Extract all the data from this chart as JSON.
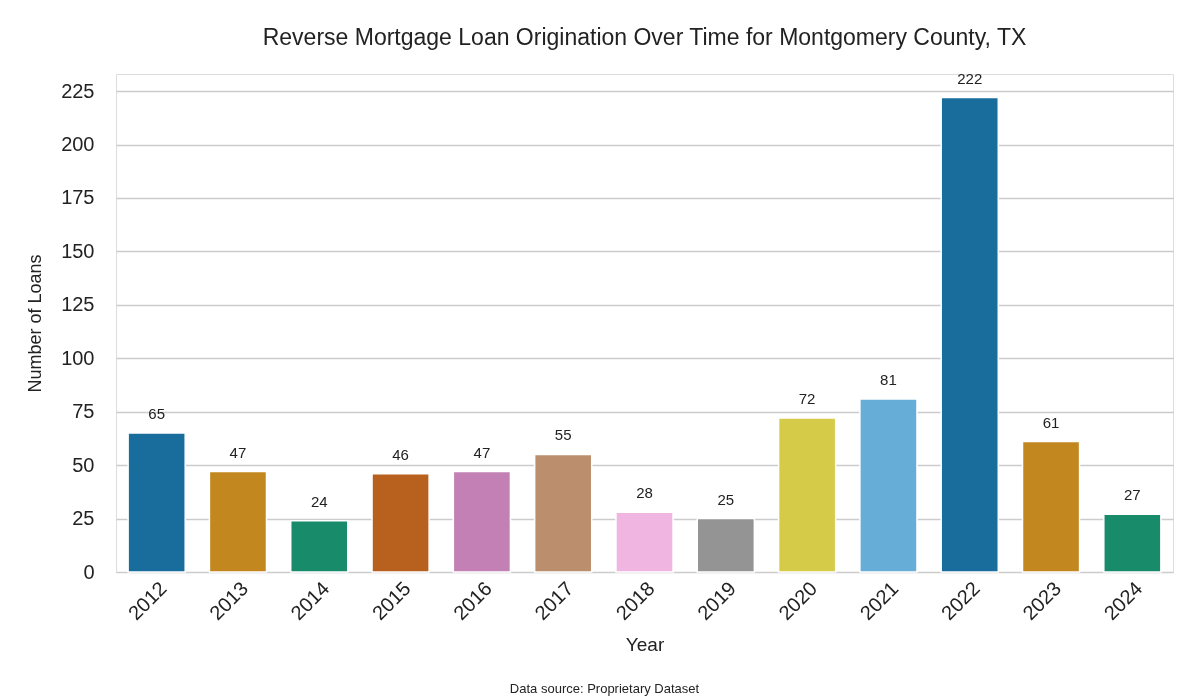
{
  "chart_data": {
    "type": "bar",
    "title": "Reverse Mortgage Loan Origination Over Time for Montgomery County, TX",
    "xlabel": "Year",
    "ylabel": "Number of Loans",
    "categories": [
      "2012",
      "2013",
      "2014",
      "2015",
      "2016",
      "2017",
      "2018",
      "2019",
      "2020",
      "2021",
      "2022",
      "2023",
      "2024"
    ],
    "values": [
      65,
      47,
      24,
      46,
      47,
      55,
      28,
      25,
      72,
      81,
      222,
      61,
      27
    ],
    "colors": [
      "#186d9c",
      "#c3871f",
      "#188b6a",
      "#b8601d",
      "#c280b4",
      "#bb8f6d",
      "#f0b5e0",
      "#949494",
      "#d5cb49",
      "#66aed7",
      "#186d9c",
      "#c3871f",
      "#188b6a"
    ],
    "ylim": [
      0,
      233
    ],
    "yticks": [
      0,
      25,
      50,
      75,
      100,
      125,
      150,
      175,
      200,
      225
    ],
    "grid": "y",
    "data_labels": true,
    "annotations": [
      "Data source: Proprietary Dataset"
    ]
  }
}
